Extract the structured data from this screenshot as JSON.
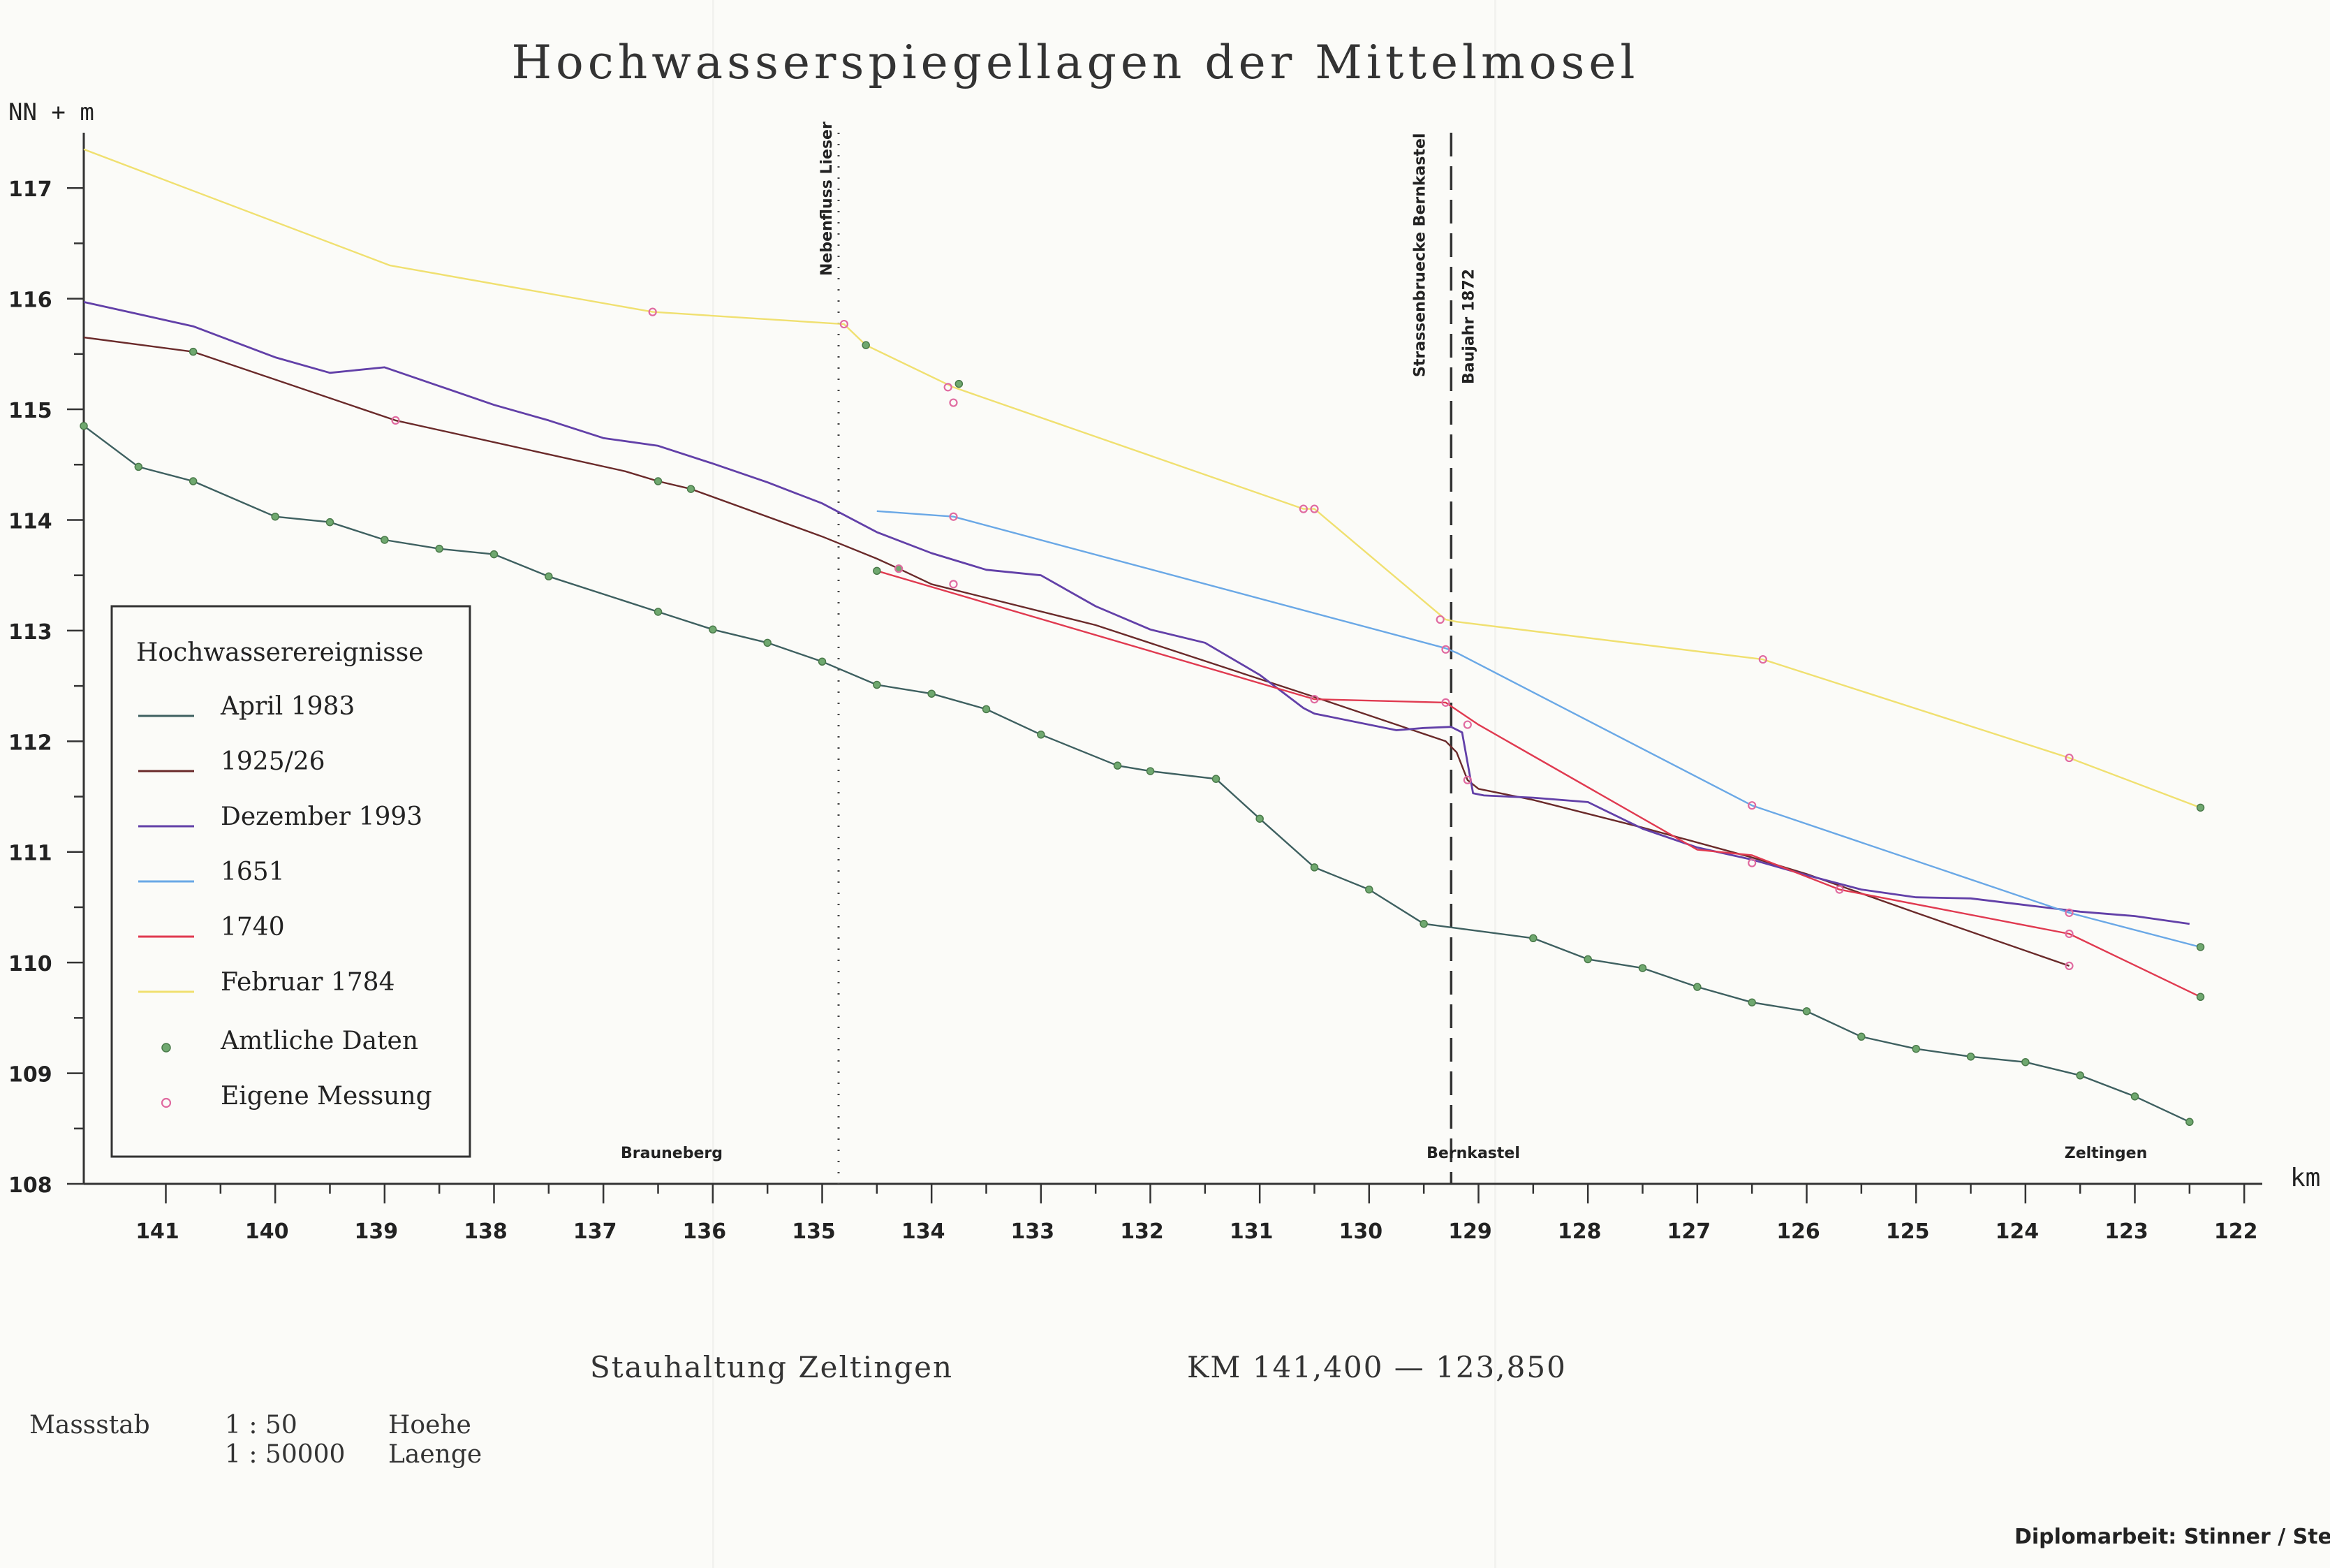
{
  "chart_data": {
    "type": "line",
    "title": "Hochwasserspiegellagen der Mittelmosel",
    "ylabel": "NN + m",
    "xlabel": "km",
    "xlim": [
      141.75,
      121.95
    ],
    "ylim": [
      108,
      117.5
    ],
    "x_ticks": [
      "141",
      "140",
      "139",
      "138",
      "137",
      "136",
      "135",
      "134",
      "133",
      "132",
      "131",
      "130",
      "129",
      "128",
      "127",
      "126",
      "125",
      "124",
      "123",
      "122"
    ],
    "y_ticks": [
      "108",
      "109",
      "110",
      "111",
      "112",
      "113",
      "114",
      "115",
      "116",
      "117"
    ],
    "legend": {
      "title": "Hochwasserereignisse",
      "placement": "left",
      "items": [
        {
          "label": "April 1983",
          "color": "#3e6060"
        },
        {
          "label": "1925/26",
          "color": "#6a2a2a"
        },
        {
          "label": "Dezember 1993",
          "color": "#6240a8"
        },
        {
          "label": "1651",
          "color": "#6aa8e6"
        },
        {
          "label": "1740",
          "color": "#e03a50"
        },
        {
          "label": "Februar 1784",
          "color": "#f0e070"
        }
      ],
      "markers": [
        {
          "label": "Amtliche Daten",
          "color": "#6fa86f"
        },
        {
          "label": "Eigene Messung",
          "color": "#e06aa0"
        }
      ]
    },
    "annotations": {
      "lieser": "Nebenfluss Lieser",
      "bridge": "Strassenbruecke Bernkastel",
      "bridge_year": "Baujahr 1872",
      "brauneberg": "Brauneberg",
      "bernkastel": "Bernkastel",
      "zeltingen": "Zeltingen"
    },
    "series": [
      {
        "name": "April 1983",
        "color": "#3e6060",
        "width": 2.4,
        "x": [
          141.75,
          141.25,
          140.75,
          140.0,
          139.5,
          139.0,
          138.5,
          138.0,
          137.5,
          136.5,
          136.0,
          135.5,
          135.0,
          134.5,
          134.0,
          133.5,
          133.0,
          132.3,
          132.0,
          131.4,
          131.0,
          130.5,
          130.0,
          129.5,
          128.5,
          128.0,
          127.5,
          127.0,
          126.5,
          126.0,
          125.5,
          125.0,
          124.5,
          124.0,
          123.5,
          123.0,
          122.5
        ],
        "y": [
          114.85,
          114.48,
          114.35,
          114.03,
          113.98,
          113.82,
          113.74,
          113.69,
          113.49,
          113.17,
          113.01,
          112.89,
          112.72,
          112.51,
          112.43,
          112.29,
          112.06,
          111.78,
          111.73,
          111.66,
          111.3,
          110.86,
          110.66,
          110.35,
          110.22,
          110.03,
          109.95,
          109.78,
          109.64,
          109.56,
          109.33,
          109.22,
          109.15,
          109.1,
          108.98,
          108.79,
          108.56
        ]
      },
      {
        "name": "1925/26",
        "color": "#6a2a2a",
        "width": 2.4,
        "x": [
          141.75,
          140.75,
          138.9,
          136.8,
          136.5,
          136.2,
          135.0,
          134.5,
          134.3,
          134.0,
          132.5,
          130.5,
          129.3,
          129.2,
          129.1,
          129.0,
          128.5,
          127.5,
          126.5,
          126.0,
          125.0,
          123.6
        ],
        "y": [
          115.65,
          115.52,
          114.9,
          114.44,
          114.35,
          114.28,
          113.85,
          113.65,
          113.56,
          113.42,
          113.05,
          112.4,
          112.0,
          111.9,
          111.65,
          111.57,
          111.47,
          111.22,
          110.95,
          110.8,
          110.45,
          109.97
        ]
      },
      {
        "name": "Dezember 1993",
        "color": "#6240a8",
        "width": 2.8,
        "x": [
          141.75,
          141.25,
          140.75,
          140.0,
          139.5,
          139.0,
          138.5,
          138.0,
          137.5,
          137.0,
          136.5,
          136.0,
          135.5,
          135.0,
          134.5,
          134.0,
          133.5,
          133.0,
          132.5,
          132.0,
          131.5,
          131.0,
          130.6,
          130.5,
          129.75,
          129.5,
          129.25,
          129.15,
          129.05,
          128.95,
          128.5,
          128.0,
          127.5,
          127.0,
          126.5,
          126.0,
          125.5,
          125.0,
          124.5,
          124.0,
          123.5,
          123.0,
          122.5
        ],
        "y": [
          115.97,
          115.86,
          115.75,
          115.47,
          115.33,
          115.38,
          115.21,
          115.04,
          114.9,
          114.74,
          114.67,
          114.51,
          114.34,
          114.15,
          113.89,
          113.7,
          113.55,
          113.5,
          113.22,
          113.01,
          112.89,
          112.6,
          112.3,
          112.25,
          112.1,
          112.12,
          112.13,
          112.08,
          111.53,
          111.51,
          111.49,
          111.45,
          111.21,
          111.04,
          110.93,
          110.79,
          110.66,
          110.59,
          110.58,
          110.52,
          110.46,
          110.42,
          110.35
        ]
      },
      {
        "name": "1651",
        "color": "#6aa8e6",
        "width": 2.4,
        "x": [
          134.5,
          133.8,
          129.3,
          129.2,
          126.5,
          123.6,
          122.4
        ],
        "y": [
          114.08,
          114.03,
          112.84,
          112.8,
          111.42,
          110.45,
          110.14
        ]
      },
      {
        "name": "1740",
        "color": "#e03a50",
        "width": 2.4,
        "x": [
          134.5,
          130.5,
          129.3,
          129.0,
          127.0,
          126.5,
          125.7,
          123.6,
          122.4
        ],
        "y": [
          113.54,
          112.38,
          112.35,
          112.15,
          111.02,
          110.97,
          110.66,
          110.26,
          109.69
        ]
      },
      {
        "name": "Februar 1784",
        "color": "#f0e070",
        "width": 2.4,
        "x": [
          141.75,
          138.95,
          136.55,
          134.8,
          134.6,
          133.8,
          130.6,
          130.5,
          129.3,
          129.2,
          126.4,
          123.6,
          122.4
        ],
        "y": [
          117.35,
          116.3,
          115.88,
          115.77,
          115.58,
          115.2,
          114.1,
          114.1,
          113.1,
          113.08,
          112.74,
          111.85,
          111.4
        ]
      }
    ],
    "points": {
      "amtliche_daten": {
        "color": "#6fa86f",
        "x": [
          141.75,
          141.25,
          140.75,
          140.0,
          139.5,
          139.0,
          138.5,
          138.0,
          137.5,
          136.5,
          136.0,
          135.5,
          135.0,
          134.5,
          134.0,
          133.5,
          133.0,
          132.3,
          132.0,
          131.4,
          131.0,
          130.5,
          130.0,
          129.5,
          128.5,
          128.0,
          127.5,
          127.0,
          126.5,
          126.0,
          125.5,
          125.0,
          124.5,
          124.0,
          123.5,
          123.0,
          122.5,
          140.75,
          136.5,
          136.2,
          134.5,
          134.3,
          134.6,
          133.75,
          122.4,
          122.4,
          122.4
        ],
        "y": [
          114.85,
          114.48,
          114.35,
          114.03,
          113.98,
          113.82,
          113.74,
          113.69,
          113.49,
          113.17,
          113.01,
          112.89,
          112.72,
          112.51,
          112.43,
          112.29,
          112.06,
          111.78,
          111.73,
          111.66,
          111.3,
          110.86,
          110.66,
          110.35,
          110.22,
          110.03,
          109.95,
          109.78,
          109.64,
          109.56,
          109.33,
          109.22,
          109.15,
          109.1,
          108.98,
          108.79,
          108.56,
          115.52,
          114.35,
          114.28,
          113.54,
          113.56,
          115.58,
          115.23,
          110.14,
          109.69,
          111.4
        ]
      },
      "eigene_messung": {
        "color": "#e06aa0",
        "x": [
          138.9,
          136.55,
          134.8,
          133.85,
          133.8,
          133.8,
          130.6,
          130.5,
          129.35,
          129.3,
          129.3,
          126.5,
          126.5,
          126.4,
          125.7,
          123.6,
          123.6,
          123.6,
          123.6,
          134.3,
          133.8,
          130.5,
          129.1,
          129.1
        ],
        "y": [
          114.9,
          115.88,
          115.77,
          115.2,
          115.06,
          114.03,
          114.1,
          114.1,
          113.1,
          112.83,
          112.35,
          110.9,
          111.42,
          112.74,
          110.66,
          111.85,
          110.45,
          110.26,
          109.97,
          113.56,
          113.42,
          112.38,
          111.65,
          112.15
        ]
      }
    }
  },
  "footer": {
    "section": "Stauhaltung Zeltingen",
    "km_range": "KM 141,400 — 123,850",
    "scale_label": "Massstab",
    "scale_h_ratio": "1 : 50",
    "scale_h_label": "Hoehe",
    "scale_l_ratio": "1 : 50000",
    "scale_l_label": "Laenge",
    "credit": "Diplomarbeit: Stinner / Ste"
  }
}
